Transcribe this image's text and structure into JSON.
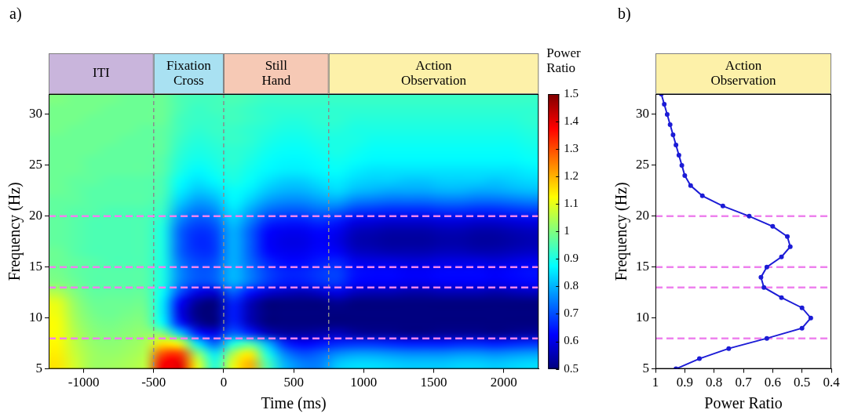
{
  "chart_data": [
    {
      "type": "heatmap",
      "label": "a)",
      "x_label": "Time (ms)",
      "y_label": "Frequency (Hz)",
      "xlim": [
        -1250,
        2250
      ],
      "xticks": [
        -1000,
        -500,
        0,
        500,
        1000,
        1500,
        2000
      ],
      "ylim": [
        5,
        32
      ],
      "yticks": [
        5,
        10,
        15,
        20,
        25,
        30
      ],
      "phases": [
        {
          "label": "ITI",
          "start": -1250,
          "end": -500,
          "color": "#c9b5dc"
        },
        {
          "label": "Fixation Cross",
          "start": -500,
          "end": 0,
          "color": "#a9e1f2"
        },
        {
          "label": "Still Hand",
          "start": 0,
          "end": 750,
          "color": "#f6c9b5"
        },
        {
          "label": "Action Observation",
          "start": 750,
          "end": 2250,
          "color": "#fdf1a9"
        }
      ],
      "bands": {
        "values": [
          8,
          13,
          15,
          20
        ],
        "color": "#ee82ee",
        "line_style": "dashed"
      },
      "colorbar": {
        "title": "Power Ratio",
        "range": [
          0.5,
          1.5
        ],
        "ticks": [
          0.5,
          0.6,
          0.7,
          0.8,
          0.9,
          1,
          1.1,
          1.2,
          1.3,
          1.4,
          1.5
        ]
      },
      "x_edges": [
        -1250,
        -1125,
        -1000,
        -875,
        -750,
        -625,
        -500,
        -375,
        -250,
        -125,
        0,
        125,
        250,
        375,
        500,
        625,
        750,
        875,
        1000,
        1125,
        1250,
        1375,
        1500,
        1625,
        1750,
        1875,
        2000,
        2125,
        2250
      ],
      "y_edges": [
        5,
        6,
        7,
        8,
        9,
        10,
        11,
        12,
        13,
        14,
        15,
        16,
        17,
        18,
        19,
        20,
        21,
        22,
        23,
        24,
        25,
        26,
        27,
        28,
        29,
        30,
        31,
        32
      ],
      "cells": [
        [
          1.15,
          1.08,
          1.03,
          1.03,
          1.04,
          1.06,
          1.38,
          1.4,
          1.1,
          0.9,
          1.1,
          1.2,
          0.95,
          0.8,
          0.75,
          0.75,
          0.82,
          0.84,
          0.84,
          0.83,
          0.82,
          0.82,
          0.82,
          0.83,
          0.83,
          0.82,
          0.83,
          0.84
        ],
        [
          1.14,
          1.07,
          1.03,
          1.02,
          1.03,
          1.05,
          1.3,
          1.32,
          1.02,
          0.85,
          1.04,
          1.14,
          0.9,
          0.75,
          0.7,
          0.72,
          0.76,
          0.78,
          0.78,
          0.77,
          0.76,
          0.76,
          0.76,
          0.77,
          0.77,
          0.76,
          0.77,
          0.78
        ],
        [
          1.13,
          1.06,
          1.02,
          1.01,
          1.02,
          1.04,
          1.15,
          1.1,
          0.85,
          0.72,
          0.9,
          0.95,
          0.8,
          0.66,
          0.62,
          0.64,
          0.66,
          0.67,
          0.67,
          0.66,
          0.65,
          0.65,
          0.65,
          0.66,
          0.66,
          0.65,
          0.66,
          0.67
        ],
        [
          1.12,
          1.05,
          1.01,
          1.0,
          1.01,
          1.02,
          1.0,
          0.82,
          0.65,
          0.6,
          0.72,
          0.66,
          0.56,
          0.53,
          0.53,
          0.54,
          0.56,
          0.53,
          0.52,
          0.52,
          0.51,
          0.51,
          0.52,
          0.52,
          0.52,
          0.51,
          0.52,
          0.53
        ],
        [
          1.12,
          1.04,
          1.0,
          0.99,
          1.0,
          1.0,
          0.88,
          0.65,
          0.53,
          0.5,
          0.66,
          0.56,
          0.5,
          0.48,
          0.48,
          0.49,
          0.5,
          0.46,
          0.45,
          0.45,
          0.44,
          0.44,
          0.45,
          0.45,
          0.45,
          0.44,
          0.45,
          0.46
        ],
        [
          1.11,
          1.03,
          0.99,
          0.98,
          0.99,
          0.99,
          0.86,
          0.6,
          0.5,
          0.48,
          0.65,
          0.55,
          0.49,
          0.47,
          0.47,
          0.48,
          0.5,
          0.45,
          0.44,
          0.44,
          0.43,
          0.43,
          0.44,
          0.44,
          0.44,
          0.43,
          0.44,
          0.45
        ],
        [
          1.1,
          1.02,
          0.98,
          0.98,
          0.98,
          0.98,
          0.86,
          0.62,
          0.52,
          0.5,
          0.66,
          0.56,
          0.5,
          0.48,
          0.48,
          0.49,
          0.52,
          0.47,
          0.46,
          0.46,
          0.45,
          0.45,
          0.46,
          0.46,
          0.46,
          0.45,
          0.46,
          0.47
        ],
        [
          1.05,
          1.0,
          0.97,
          0.97,
          0.97,
          0.97,
          0.88,
          0.7,
          0.6,
          0.58,
          0.72,
          0.64,
          0.58,
          0.56,
          0.55,
          0.57,
          0.6,
          0.56,
          0.55,
          0.55,
          0.54,
          0.54,
          0.55,
          0.55,
          0.55,
          0.54,
          0.55,
          0.56
        ],
        [
          1.0,
          0.98,
          0.96,
          0.96,
          0.96,
          0.96,
          0.9,
          0.75,
          0.7,
          0.71,
          0.8,
          0.74,
          0.68,
          0.65,
          0.65,
          0.67,
          0.68,
          0.63,
          0.62,
          0.62,
          0.61,
          0.61,
          0.62,
          0.62,
          0.62,
          0.61,
          0.62,
          0.63
        ],
        [
          0.99,
          0.97,
          0.96,
          0.96,
          0.96,
          0.96,
          0.9,
          0.76,
          0.71,
          0.72,
          0.81,
          0.75,
          0.69,
          0.66,
          0.66,
          0.68,
          0.69,
          0.64,
          0.63,
          0.63,
          0.62,
          0.62,
          0.63,
          0.63,
          0.63,
          0.62,
          0.63,
          0.64
        ],
        [
          0.98,
          0.97,
          0.96,
          0.95,
          0.95,
          0.95,
          0.9,
          0.74,
          0.69,
          0.7,
          0.8,
          0.73,
          0.66,
          0.63,
          0.63,
          0.65,
          0.66,
          0.61,
          0.6,
          0.6,
          0.59,
          0.59,
          0.6,
          0.6,
          0.6,
          0.59,
          0.6,
          0.61
        ],
        [
          0.98,
          0.96,
          0.95,
          0.95,
          0.95,
          0.95,
          0.9,
          0.72,
          0.67,
          0.68,
          0.8,
          0.72,
          0.63,
          0.61,
          0.61,
          0.63,
          0.62,
          0.57,
          0.56,
          0.55,
          0.55,
          0.55,
          0.56,
          0.56,
          0.55,
          0.55,
          0.56,
          0.57
        ],
        [
          0.97,
          0.96,
          0.95,
          0.95,
          0.95,
          0.95,
          0.9,
          0.72,
          0.66,
          0.68,
          0.8,
          0.72,
          0.62,
          0.6,
          0.6,
          0.62,
          0.6,
          0.55,
          0.54,
          0.53,
          0.53,
          0.53,
          0.54,
          0.54,
          0.53,
          0.53,
          0.54,
          0.55
        ],
        [
          0.97,
          0.96,
          0.95,
          0.95,
          0.95,
          0.95,
          0.9,
          0.72,
          0.67,
          0.69,
          0.8,
          0.72,
          0.63,
          0.61,
          0.61,
          0.63,
          0.61,
          0.56,
          0.55,
          0.54,
          0.54,
          0.54,
          0.55,
          0.55,
          0.54,
          0.54,
          0.55,
          0.56
        ],
        [
          0.97,
          0.96,
          0.95,
          0.95,
          0.95,
          0.95,
          0.91,
          0.75,
          0.7,
          0.72,
          0.82,
          0.75,
          0.67,
          0.65,
          0.65,
          0.67,
          0.65,
          0.6,
          0.59,
          0.58,
          0.58,
          0.58,
          0.59,
          0.59,
          0.58,
          0.58,
          0.59,
          0.6
        ],
        [
          0.97,
          0.96,
          0.96,
          0.95,
          0.95,
          0.95,
          0.93,
          0.79,
          0.74,
          0.76,
          0.85,
          0.79,
          0.73,
          0.71,
          0.71,
          0.73,
          0.72,
          0.68,
          0.67,
          0.66,
          0.66,
          0.66,
          0.67,
          0.67,
          0.66,
          0.66,
          0.67,
          0.68
        ],
        [
          0.97,
          0.97,
          0.96,
          0.96,
          0.96,
          0.96,
          0.94,
          0.83,
          0.78,
          0.8,
          0.87,
          0.83,
          0.78,
          0.76,
          0.76,
          0.78,
          0.79,
          0.75,
          0.74,
          0.73,
          0.73,
          0.73,
          0.74,
          0.74,
          0.73,
          0.73,
          0.74,
          0.75
        ],
        [
          0.98,
          0.97,
          0.96,
          0.96,
          0.96,
          0.96,
          0.95,
          0.86,
          0.82,
          0.84,
          0.88,
          0.86,
          0.82,
          0.8,
          0.8,
          0.82,
          0.84,
          0.81,
          0.8,
          0.79,
          0.79,
          0.79,
          0.8,
          0.8,
          0.79,
          0.79,
          0.8,
          0.81
        ],
        [
          0.98,
          0.97,
          0.97,
          0.96,
          0.96,
          0.96,
          0.95,
          0.88,
          0.85,
          0.87,
          0.9,
          0.88,
          0.85,
          0.83,
          0.83,
          0.85,
          0.86,
          0.84,
          0.83,
          0.83,
          0.82,
          0.82,
          0.83,
          0.83,
          0.83,
          0.82,
          0.83,
          0.84
        ],
        [
          0.98,
          0.98,
          0.97,
          0.97,
          0.97,
          0.97,
          0.96,
          0.9,
          0.87,
          0.89,
          0.91,
          0.89,
          0.87,
          0.86,
          0.86,
          0.87,
          0.88,
          0.86,
          0.85,
          0.85,
          0.85,
          0.85,
          0.85,
          0.85,
          0.85,
          0.85,
          0.85,
          0.86
        ],
        [
          0.98,
          0.98,
          0.97,
          0.97,
          0.97,
          0.97,
          0.96,
          0.91,
          0.89,
          0.9,
          0.92,
          0.9,
          0.88,
          0.87,
          0.87,
          0.88,
          0.89,
          0.88,
          0.87,
          0.87,
          0.87,
          0.87,
          0.87,
          0.87,
          0.87,
          0.87,
          0.87,
          0.88
        ],
        [
          0.98,
          0.98,
          0.98,
          0.97,
          0.97,
          0.97,
          0.97,
          0.92,
          0.9,
          0.91,
          0.92,
          0.91,
          0.89,
          0.88,
          0.88,
          0.89,
          0.9,
          0.89,
          0.88,
          0.88,
          0.88,
          0.88,
          0.88,
          0.88,
          0.88,
          0.88,
          0.88,
          0.89
        ],
        [
          0.98,
          0.98,
          0.98,
          0.98,
          0.97,
          0.97,
          0.97,
          0.93,
          0.91,
          0.92,
          0.93,
          0.92,
          0.9,
          0.89,
          0.89,
          0.9,
          0.9,
          0.9,
          0.89,
          0.89,
          0.89,
          0.89,
          0.89,
          0.89,
          0.89,
          0.89,
          0.89,
          0.9
        ],
        [
          0.99,
          0.98,
          0.98,
          0.98,
          0.98,
          0.97,
          0.97,
          0.94,
          0.92,
          0.93,
          0.93,
          0.92,
          0.91,
          0.9,
          0.9,
          0.91,
          0.91,
          0.9,
          0.9,
          0.9,
          0.9,
          0.9,
          0.9,
          0.9,
          0.9,
          0.9,
          0.9,
          0.91
        ],
        [
          0.99,
          0.99,
          0.98,
          0.98,
          0.98,
          0.98,
          0.98,
          0.94,
          0.93,
          0.93,
          0.94,
          0.93,
          0.92,
          0.91,
          0.91,
          0.92,
          0.92,
          0.91,
          0.91,
          0.91,
          0.91,
          0.91,
          0.91,
          0.91,
          0.91,
          0.91,
          0.91,
          0.92
        ],
        [
          0.99,
          0.99,
          0.99,
          0.98,
          0.98,
          0.98,
          0.98,
          0.95,
          0.93,
          0.94,
          0.94,
          0.93,
          0.92,
          0.92,
          0.92,
          0.92,
          0.92,
          0.92,
          0.92,
          0.92,
          0.92,
          0.92,
          0.92,
          0.92,
          0.92,
          0.92,
          0.92,
          0.92
        ],
        [
          1.0,
          0.99,
          0.99,
          0.99,
          0.98,
          0.98,
          0.98,
          0.95,
          0.94,
          0.94,
          0.95,
          0.94,
          0.93,
          0.93,
          0.93,
          0.93,
          0.93,
          0.93,
          0.93,
          0.93,
          0.93,
          0.93,
          0.93,
          0.93,
          0.93,
          0.93,
          0.93,
          0.93
        ]
      ]
    },
    {
      "type": "line",
      "label": "b)",
      "header": {
        "label": "Action Observation",
        "color": "#fdf1a9"
      },
      "x_label": "Power Ratio",
      "y_label": "Frequency (Hz)",
      "xlim": [
        1,
        0.4
      ],
      "xticks": [
        1,
        0.9,
        0.8,
        0.7,
        0.6,
        0.5,
        0.4
      ],
      "ylim": [
        5,
        32
      ],
      "yticks": [
        5,
        10,
        15,
        20,
        25,
        30
      ],
      "bands": {
        "values": [
          8,
          13,
          15,
          20
        ],
        "color": "#ee82ee",
        "line_style": "dashed"
      },
      "color": "#1c1cd6",
      "marker": "circle",
      "frequency": [
        5,
        6,
        7,
        8,
        9,
        10,
        11,
        12,
        13,
        14,
        15,
        16,
        17,
        18,
        19,
        20,
        21,
        22,
        23,
        24,
        25,
        26,
        27,
        28,
        29,
        30,
        31,
        32
      ],
      "power_ratio": [
        0.93,
        0.85,
        0.75,
        0.62,
        0.5,
        0.47,
        0.5,
        0.57,
        0.63,
        0.64,
        0.62,
        0.57,
        0.54,
        0.55,
        0.6,
        0.68,
        0.77,
        0.84,
        0.88,
        0.9,
        0.91,
        0.92,
        0.93,
        0.94,
        0.95,
        0.96,
        0.97,
        0.98
      ]
    }
  ]
}
